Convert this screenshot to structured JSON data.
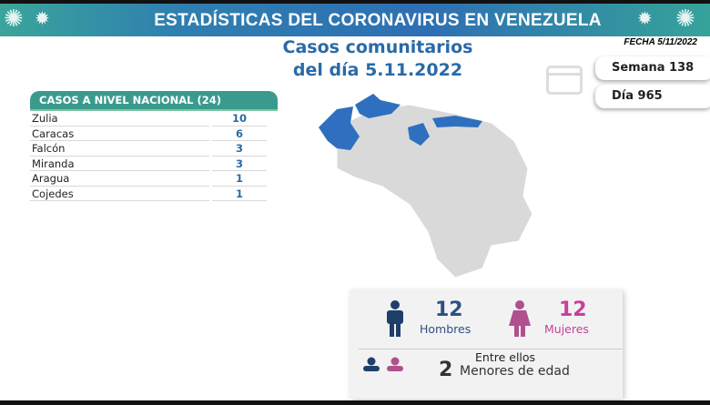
{
  "header": {
    "title": "ESTADÍSTICAS DEL CORONAVIRUS EN VENEZUELA"
  },
  "subtitle": {
    "line1": "Casos comunitarios",
    "line2": "del día 5.11.2022"
  },
  "fecha": "FECHA 5/11/2022",
  "semana": "Semana 138",
  "dia": "Día 965",
  "table": {
    "header": "CASOS A NIVEL NACIONAL  (24)",
    "rows": [
      {
        "name": "Zulia",
        "value": "10"
      },
      {
        "name": "Caracas",
        "value": "6"
      },
      {
        "name": "Falcón",
        "value": "3"
      },
      {
        "name": "Miranda",
        "value": "3"
      },
      {
        "name": "Aragua",
        "value": "1"
      },
      {
        "name": "Cojedes",
        "value": "1"
      }
    ]
  },
  "gender": {
    "men_count": "12",
    "men_label": "Hombres",
    "women_count": "12",
    "women_label": "Mujeres",
    "minors_intro": "Entre ellos",
    "minors_count": "2",
    "minors_label": "Menores de edad"
  },
  "colors": {
    "blue": "#2a6aa6",
    "pink": "#c8409a",
    "teal": "#3a9a8e",
    "map_highlight": "#2e6fbf",
    "map_base": "#d9d9d9"
  },
  "icons": [
    "virus-icon",
    "calendar-icon",
    "man-icon",
    "woman-icon",
    "person-icon"
  ]
}
